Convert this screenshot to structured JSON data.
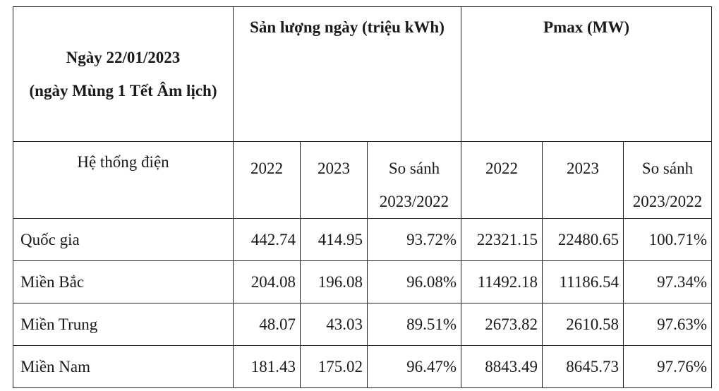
{
  "table": {
    "date_header": {
      "line1": "Ngày 22/01/2023",
      "line2": "(ngày Mùng 1 Tết Âm lịch)"
    },
    "group_headers": {
      "output": "Sản lượng ngày (triệu kWh)",
      "pmax": "Pmax (MW)"
    },
    "sub_headers": {
      "system": "Hệ thống điện",
      "year_2022": "2022",
      "year_2023": "2023",
      "compare_line1": "So sánh",
      "compare_line2": "2023/2022"
    },
    "rows": [
      {
        "name": "Quốc gia",
        "out_2022": "442.74",
        "out_2023": "414.95",
        "out_cmp": "93.72%",
        "pmax_2022": "22321.15",
        "pmax_2023": "22480.65",
        "pmax_cmp": "100.71%"
      },
      {
        "name": "Miền Bắc",
        "out_2022": "204.08",
        "out_2023": "196.08",
        "out_cmp": "96.08%",
        "pmax_2022": "11492.18",
        "pmax_2023": "11186.54",
        "pmax_cmp": "97.34%"
      },
      {
        "name": "Miền Trung",
        "out_2022": "48.07",
        "out_2023": "43.03",
        "out_cmp": "89.51%",
        "pmax_2022": "2673.82",
        "pmax_2023": "2610.58",
        "pmax_cmp": "97.63%"
      },
      {
        "name": "Miền Nam",
        "out_2022": "181.43",
        "out_2023": "175.02",
        "out_cmp": "96.47%",
        "pmax_2022": "8843.49",
        "pmax_2023": "8645.73",
        "pmax_cmp": "97.76%"
      }
    ]
  }
}
